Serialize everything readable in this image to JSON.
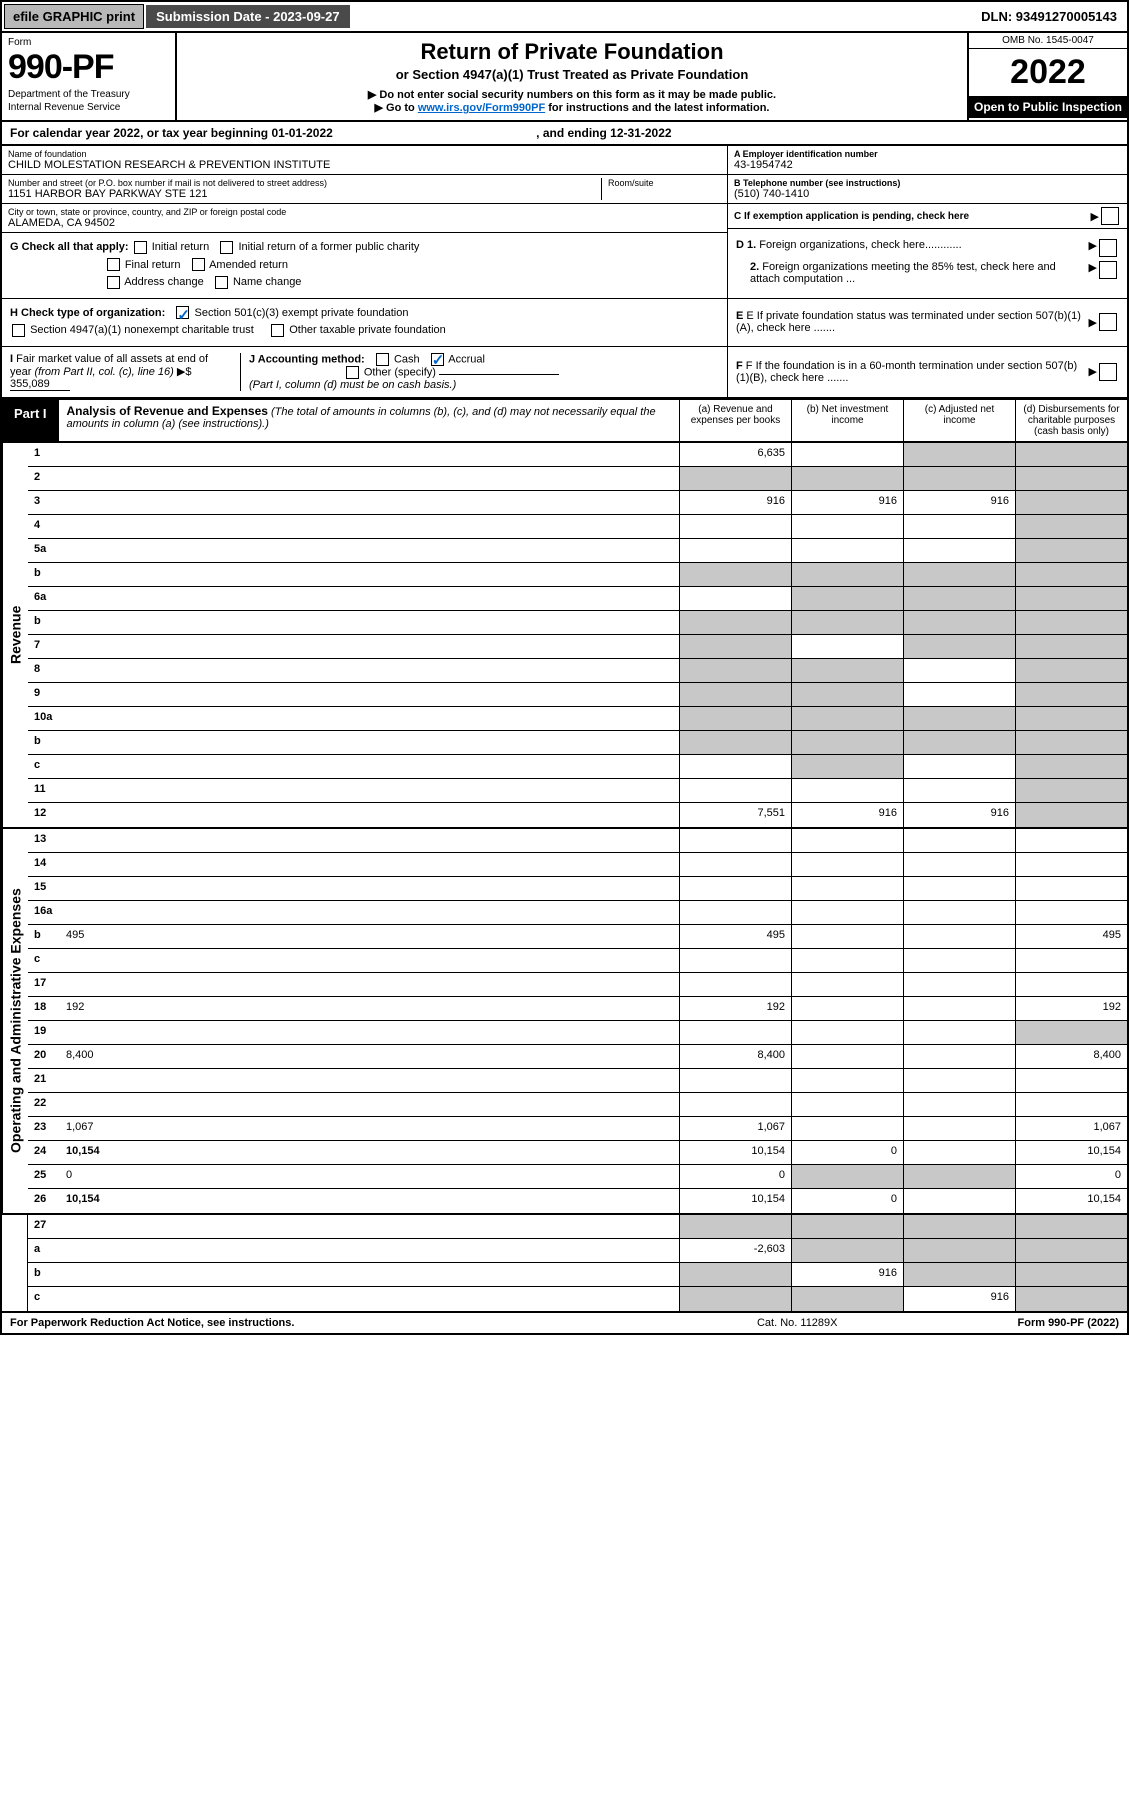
{
  "topbar": {
    "efile": "efile GRAPHIC print",
    "submission": "Submission Date - 2023-09-27",
    "dln": "DLN: 93491270005143"
  },
  "header": {
    "form_label": "Form",
    "form_num": "990-PF",
    "dept1": "Department of the Treasury",
    "dept2": "Internal Revenue Service",
    "title": "Return of Private Foundation",
    "sub1": "or Section 4947(a)(1) Trust Treated as Private Foundation",
    "sub2": "▶ Do not enter social security numbers on this form as it may be made public.",
    "sub3_pre": "▶ Go to ",
    "sub3_link": "www.irs.gov/Form990PF",
    "sub3_post": " for instructions and the latest information.",
    "omb": "OMB No. 1545-0047",
    "year": "2022",
    "open": "Open to Public Inspection"
  },
  "calyear": {
    "text_pre": "For calendar year 2022, or tax year beginning 01-01-2022",
    "text_mid": ", and ending 12-31-2022"
  },
  "info": {
    "name_lbl": "Name of foundation",
    "name": "CHILD MOLESTATION RESEARCH & PREVENTION INSTITUTE",
    "ein_lbl": "A Employer identification number",
    "ein": "43-1954742",
    "addr_lbl": "Number and street (or P.O. box number if mail is not delivered to street address)",
    "addr": "1151 HARBOR BAY PARKWAY STE 121",
    "room_lbl": "Room/suite",
    "tel_lbl": "B Telephone number (see instructions)",
    "tel": "(510) 740-1410",
    "city_lbl": "City or town, state or province, country, and ZIP or foreign postal code",
    "city": "ALAMEDA, CA  94502",
    "c_lbl": "C If exemption application is pending, check here"
  },
  "checks": {
    "g_label": "G Check all that apply:",
    "g_opts": [
      "Initial return",
      "Initial return of a former public charity",
      "Final return",
      "Amended return",
      "Address change",
      "Name change"
    ],
    "d1": "D 1. Foreign organizations, check here",
    "d2": "2. Foreign organizations meeting the 85% test, check here and attach computation ...",
    "h_label": "H Check type of organization:",
    "h_opt1": "Section 501(c)(3) exempt private foundation",
    "h_opt2": "Section 4947(a)(1) nonexempt charitable trust",
    "h_opt3": "Other taxable private foundation",
    "e_lbl": "E If private foundation status was terminated under section 507(b)(1)(A), check here .......",
    "i_lbl": "I Fair market value of all assets at end of year (from Part II, col. (c), line 16)",
    "i_val": "355,089",
    "j_lbl": "J Accounting method:",
    "j_cash": "Cash",
    "j_accrual": "Accrual",
    "j_other": "Other (specify)",
    "j_note": "(Part I, column (d) must be on cash basis.)",
    "f_lbl": "F If the foundation is in a 60-month termination under section 507(b)(1)(B), check here ......."
  },
  "part1": {
    "label": "Part I",
    "title": "Analysis of Revenue and Expenses",
    "title_note": "(The total of amounts in columns (b), (c), and (d) may not necessarily equal the amounts in column (a) (see instructions).)",
    "col_a": "(a) Revenue and expenses per books",
    "col_b": "(b) Net investment income",
    "col_c": "(c) Adjusted net income",
    "col_d": "(d) Disbursements for charitable purposes (cash basis only)"
  },
  "sidelabels": {
    "revenue": "Revenue",
    "expenses": "Operating and Administrative Expenses"
  },
  "rows": [
    {
      "n": "1",
      "d": "",
      "a": "6,635",
      "b": "",
      "c": "",
      "shade_b": false,
      "shade_c": true,
      "shade_d": true
    },
    {
      "n": "2",
      "d": "",
      "a": "",
      "b": "",
      "c": "",
      "shade_a": true,
      "shade_b": true,
      "shade_c": true,
      "shade_d": true
    },
    {
      "n": "3",
      "d": "",
      "a": "916",
      "b": "916",
      "c": "916",
      "shade_d": true
    },
    {
      "n": "4",
      "d": "",
      "a": "",
      "b": "",
      "c": "",
      "shade_d": true
    },
    {
      "n": "5a",
      "d": "",
      "a": "",
      "b": "",
      "c": "",
      "shade_d": true
    },
    {
      "n": "b",
      "d": "",
      "a": "",
      "b": "",
      "c": "",
      "shade_a": true,
      "shade_b": true,
      "shade_c": true,
      "shade_d": true
    },
    {
      "n": "6a",
      "d": "",
      "a": "",
      "b": "",
      "c": "",
      "shade_b": true,
      "shade_c": true,
      "shade_d": true
    },
    {
      "n": "b",
      "d": "",
      "a": "",
      "b": "",
      "c": "",
      "shade_a": true,
      "shade_b": true,
      "shade_c": true,
      "shade_d": true
    },
    {
      "n": "7",
      "d": "",
      "a": "",
      "b": "",
      "c": "",
      "shade_a": true,
      "shade_c": true,
      "shade_d": true
    },
    {
      "n": "8",
      "d": "",
      "a": "",
      "b": "",
      "c": "",
      "shade_a": true,
      "shade_b": true,
      "shade_d": true
    },
    {
      "n": "9",
      "d": "",
      "a": "",
      "b": "",
      "c": "",
      "shade_a": true,
      "shade_b": true,
      "shade_d": true
    },
    {
      "n": "10a",
      "d": "",
      "a": "",
      "b": "",
      "c": "",
      "shade_a": true,
      "shade_b": true,
      "shade_c": true,
      "shade_d": true
    },
    {
      "n": "b",
      "d": "",
      "a": "",
      "b": "",
      "c": "",
      "shade_a": true,
      "shade_b": true,
      "shade_c": true,
      "shade_d": true
    },
    {
      "n": "c",
      "d": "",
      "a": "",
      "b": "",
      "c": "",
      "shade_b": true,
      "shade_d": true
    },
    {
      "n": "11",
      "d": "",
      "a": "",
      "b": "",
      "c": "",
      "shade_d": true
    },
    {
      "n": "12",
      "d": "",
      "bold": true,
      "a": "7,551",
      "b": "916",
      "c": "916",
      "shade_d": true
    }
  ],
  "exp_rows": [
    {
      "n": "13",
      "d": "",
      "a": "",
      "b": "",
      "c": ""
    },
    {
      "n": "14",
      "d": "",
      "a": "",
      "b": "",
      "c": ""
    },
    {
      "n": "15",
      "d": "",
      "a": "",
      "b": "",
      "c": ""
    },
    {
      "n": "16a",
      "d": "",
      "a": "",
      "b": "",
      "c": ""
    },
    {
      "n": "b",
      "d": "495",
      "a": "495",
      "b": "",
      "c": ""
    },
    {
      "n": "c",
      "d": "",
      "a": "",
      "b": "",
      "c": ""
    },
    {
      "n": "17",
      "d": "",
      "a": "",
      "b": "",
      "c": ""
    },
    {
      "n": "18",
      "d": "192",
      "a": "192",
      "b": "",
      "c": ""
    },
    {
      "n": "19",
      "d": "",
      "a": "",
      "b": "",
      "c": "",
      "shade_d": true
    },
    {
      "n": "20",
      "d": "8,400",
      "a": "8,400",
      "b": "",
      "c": ""
    },
    {
      "n": "21",
      "d": "",
      "a": "",
      "b": "",
      "c": ""
    },
    {
      "n": "22",
      "d": "",
      "a": "",
      "b": "",
      "c": ""
    },
    {
      "n": "23",
      "d": "1,067",
      "a": "1,067",
      "b": "",
      "c": ""
    },
    {
      "n": "24",
      "d": "10,154",
      "bold": true,
      "a": "10,154",
      "b": "0",
      "c": ""
    },
    {
      "n": "25",
      "d": "0",
      "a": "0",
      "b": "",
      "c": "",
      "shade_b": true,
      "shade_c": true
    },
    {
      "n": "26",
      "d": "10,154",
      "bold": true,
      "a": "10,154",
      "b": "0",
      "c": ""
    }
  ],
  "bottom_rows": [
    {
      "n": "27",
      "d": "",
      "a": "",
      "b": "",
      "c": "",
      "shade_a": true,
      "shade_b": true,
      "shade_c": true,
      "shade_d": true
    },
    {
      "n": "a",
      "d": "",
      "bold": true,
      "a": "-2,603",
      "b": "",
      "c": "",
      "shade_b": true,
      "shade_c": true,
      "shade_d": true
    },
    {
      "n": "b",
      "d": "",
      "bold": true,
      "a": "",
      "b": "916",
      "c": "",
      "shade_a": true,
      "shade_c": true,
      "shade_d": true
    },
    {
      "n": "c",
      "d": "",
      "bold": true,
      "a": "",
      "b": "",
      "c": "916",
      "shade_a": true,
      "shade_b": true,
      "shade_d": true
    }
  ],
  "footer": {
    "left": "For Paperwork Reduction Act Notice, see instructions.",
    "mid": "Cat. No. 11289X",
    "right": "Form 990-PF (2022)"
  },
  "colors": {
    "shade": "#c8c8c8",
    "link": "#0066cc",
    "topbar_btn": "#b8b8b8",
    "topbar_dark": "#4a4a4a"
  }
}
